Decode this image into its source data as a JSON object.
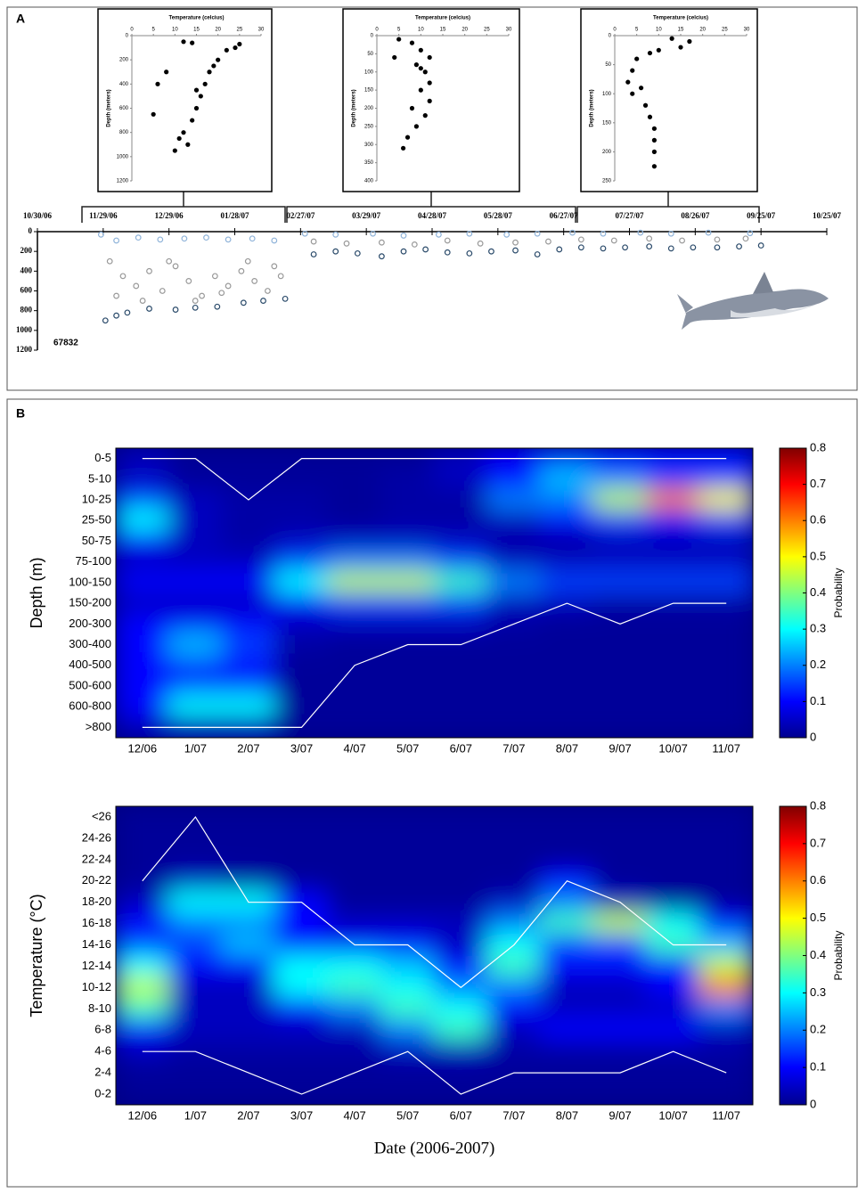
{
  "chart_data": [
    {
      "type": "timeseries",
      "label": "A",
      "annotation": "67832",
      "xlim": [
        "10/30/06",
        "10/25/07"
      ],
      "xticks": [
        "10/30/06",
        "11/29/06",
        "12/29/06",
        "01/28/07",
        "02/27/07",
        "03/29/07",
        "04/28/07",
        "05/28/07",
        "06/27/07",
        "07/27/07",
        "08/26/07",
        "09/25/07",
        "10/25/07"
      ],
      "ylim": [
        0,
        1200
      ],
      "yticks": [
        0,
        200,
        400,
        600,
        800,
        1000,
        1200
      ],
      "series": [
        {
          "color": "#999999",
          "x": [
            "12/02/06",
            "12/08/06",
            "12/14/06",
            "12/20/06",
            "12/26/06",
            "01/01/07",
            "01/07/07",
            "01/13/07",
            "01/19/07",
            "01/25/07",
            "01/31/07",
            "02/06/07",
            "02/12/07",
            "02/18/07",
            "12/05/06",
            "12/17/06",
            "12/29/06",
            "01/10/07",
            "01/22/07",
            "02/03/07",
            "02/15/07",
            "03/05/07",
            "03/20/07",
            "04/05/07",
            "04/20/07",
            "05/05/07",
            "05/20/07",
            "06/05/07",
            "06/20/07",
            "07/05/07",
            "07/20/07",
            "08/05/07",
            "08/20/07",
            "09/05/07",
            "09/18/07"
          ],
          "values": [
            300,
            450,
            550,
            400,
            600,
            350,
            500,
            650,
            450,
            550,
            400,
            500,
            600,
            450,
            650,
            700,
            300,
            700,
            620,
            300,
            350,
            100,
            120,
            110,
            130,
            90,
            120,
            110,
            100,
            80,
            90,
            70,
            90,
            80,
            70
          ]
        },
        {
          "color": "#8fb3d9",
          "x": [
            "11/28/06",
            "12/05/06",
            "12/15/06",
            "12/25/06",
            "01/05/07",
            "01/15/07",
            "01/25/07",
            "02/05/07",
            "02/15/07",
            "03/01/07",
            "03/15/07",
            "04/01/07",
            "04/15/07",
            "05/01/07",
            "05/15/07",
            "06/01/07",
            "06/15/07",
            "07/01/07",
            "07/15/07",
            "08/01/07",
            "08/15/07",
            "09/01/07",
            "09/20/07"
          ],
          "values": [
            30,
            90,
            60,
            80,
            70,
            60,
            80,
            70,
            90,
            20,
            30,
            20,
            40,
            30,
            20,
            30,
            20,
            10,
            20,
            10,
            20,
            10,
            15
          ]
        },
        {
          "color": "#2a4a6a",
          "x": [
            "11/30/06",
            "12/05/06",
            "12/10/06",
            "12/20/06",
            "01/01/07",
            "01/10/07",
            "01/20/07",
            "02/01/07",
            "02/10/07",
            "02/20/07",
            "03/05/07",
            "03/15/07",
            "03/25/07",
            "04/05/07",
            "04/15/07",
            "04/25/07",
            "05/05/07",
            "05/15/07",
            "05/25/07",
            "06/05/07",
            "06/15/07",
            "06/25/07",
            "07/05/07",
            "07/15/07",
            "07/25/07",
            "08/05/07",
            "08/15/07",
            "08/25/07",
            "09/05/07",
            "09/15/07",
            "09/25/07"
          ],
          "values": [
            900,
            850,
            820,
            780,
            790,
            770,
            760,
            720,
            700,
            680,
            230,
            200,
            220,
            250,
            200,
            180,
            210,
            220,
            200,
            190,
            230,
            180,
            160,
            170,
            160,
            150,
            170,
            160,
            160,
            150,
            140
          ]
        }
      ]
    },
    {
      "type": "scatter",
      "x_label": "Temperature (celcius)",
      "y_label": "Depth (meters)",
      "color": "#000000",
      "xlim": [
        0,
        30
      ],
      "xticks": [
        0,
        5,
        10,
        15,
        20,
        25,
        30
      ],
      "ylim": [
        0,
        1200
      ],
      "yticks": [
        0,
        200,
        400,
        600,
        800,
        1000,
        1200
      ],
      "x": [
        12,
        14,
        22,
        25,
        20,
        18,
        17,
        16,
        15,
        14,
        12,
        13,
        10,
        8,
        6,
        5,
        19,
        15,
        11,
        24
      ],
      "values": [
        50,
        60,
        120,
        70,
        200,
        300,
        400,
        500,
        600,
        700,
        800,
        900,
        950,
        300,
        400,
        650,
        250,
        450,
        850,
        100
      ]
    },
    {
      "type": "scatter",
      "x_label": "Temperature (celcius)",
      "y_label": "Depth (meters)",
      "color": "#000000",
      "xlim": [
        0,
        30
      ],
      "xticks": [
        0,
        5,
        10,
        15,
        20,
        25,
        30
      ],
      "ylim": [
        0,
        400
      ],
      "yticks": [
        0,
        50,
        100,
        150,
        200,
        250,
        300,
        350,
        400
      ],
      "x": [
        5,
        8,
        10,
        12,
        9,
        11,
        10,
        12,
        8,
        11,
        9,
        7,
        6,
        12,
        4,
        10
      ],
      "values": [
        10,
        20,
        40,
        60,
        80,
        100,
        150,
        180,
        200,
        220,
        250,
        280,
        310,
        130,
        60,
        90
      ]
    },
    {
      "type": "scatter",
      "x_label": "Temperature (celcius)",
      "y_label": "Depth (meters)",
      "color": "#000000",
      "xlim": [
        0,
        30
      ],
      "xticks": [
        0,
        5,
        10,
        15,
        20,
        25,
        30
      ],
      "ylim": [
        0,
        250
      ],
      "yticks": [
        0,
        50,
        100,
        150,
        200,
        250
      ],
      "x": [
        13,
        17,
        15,
        8,
        5,
        4,
        3,
        4,
        7,
        8,
        9,
        9,
        9,
        9,
        6,
        10
      ],
      "values": [
        5,
        10,
        20,
        30,
        40,
        60,
        80,
        100,
        120,
        140,
        160,
        180,
        200,
        225,
        90,
        25
      ]
    },
    {
      "type": "heatmap",
      "label": "B",
      "y_label": "Depth (m)",
      "colorbar_label": "Probability",
      "categories": [
        "12/06",
        "1/07",
        "2/07",
        "3/07",
        "4/07",
        "5/07",
        "6/07",
        "7/07",
        "8/07",
        "9/07",
        "10/07",
        "11/07"
      ],
      "rows": [
        "0-5",
        "5-10",
        "10-25",
        "25-50",
        "50-75",
        "75-100",
        "100-150",
        "150-200",
        "200-300",
        "300-400",
        "400-500",
        "500-600",
        "600-800",
        ">800"
      ],
      "clim": [
        0,
        0.8
      ],
      "cticks": [
        0,
        0.1,
        0.2,
        0.3,
        0.4,
        0.5,
        0.6,
        0.7,
        0.8
      ],
      "matrix": [
        [
          0.05,
          0.02,
          0.02,
          0.02,
          0.02,
          0.02,
          0.05,
          0.1,
          0.15,
          0.1,
          0.1,
          0.1
        ],
        [
          0.05,
          0.02,
          0.02,
          0.02,
          0.02,
          0.03,
          0.05,
          0.1,
          0.25,
          0.2,
          0.15,
          0.15
        ],
        [
          0.15,
          0.05,
          0.03,
          0.03,
          0.02,
          0.03,
          0.03,
          0.2,
          0.2,
          0.45,
          0.6,
          0.5
        ],
        [
          0.3,
          0.05,
          0.03,
          0.03,
          0.02,
          0.03,
          0.03,
          0.05,
          0.1,
          0.15,
          0.1,
          0.15
        ],
        [
          0.1,
          0.05,
          0.03,
          0.05,
          0.05,
          0.05,
          0.05,
          0.03,
          0.03,
          0.05,
          0.05,
          0.05
        ],
        [
          0.05,
          0.05,
          0.05,
          0.15,
          0.2,
          0.2,
          0.15,
          0.05,
          0.05,
          0.05,
          0.05,
          0.05
        ],
        [
          0.1,
          0.1,
          0.1,
          0.3,
          0.45,
          0.45,
          0.35,
          0.2,
          0.15,
          0.15,
          0.15,
          0.15
        ],
        [
          0.05,
          0.05,
          0.05,
          0.1,
          0.15,
          0.15,
          0.15,
          0.05,
          0.05,
          0.03,
          0.03,
          0.03
        ],
        [
          0.1,
          0.1,
          0.1,
          0.05,
          0.05,
          0.05,
          0.05,
          0.03,
          0.02,
          0.02,
          0.02,
          0.02
        ],
        [
          0.1,
          0.25,
          0.15,
          0.03,
          0.02,
          0.02,
          0.02,
          0.02,
          0.02,
          0.02,
          0.02,
          0.02
        ],
        [
          0.1,
          0.15,
          0.1,
          0.02,
          0.02,
          0.02,
          0.02,
          0.02,
          0.02,
          0.02,
          0.02,
          0.02
        ],
        [
          0.1,
          0.15,
          0.15,
          0.02,
          0.02,
          0.02,
          0.02,
          0.02,
          0.02,
          0.02,
          0.02,
          0.02
        ],
        [
          0.1,
          0.3,
          0.3,
          0.02,
          0.02,
          0.02,
          0.02,
          0.02,
          0.02,
          0.02,
          0.02,
          0.02
        ],
        [
          0.05,
          0.05,
          0.05,
          0.02,
          0.02,
          0.02,
          0.02,
          0.02,
          0.02,
          0.02,
          0.02,
          0.02
        ]
      ],
      "lines": [
        {
          "color": "#ffffff",
          "values": [
            ">800",
            ">800",
            ">800",
            ">800",
            "400-500",
            "300-400",
            "300-400",
            "200-300",
            "150-200",
            "200-300",
            "150-200",
            "150-200"
          ]
        },
        {
          "color": "#ffffff",
          "values": [
            "0-5",
            "0-5",
            "10-25",
            "0-5",
            "0-5",
            "0-5",
            "0-5",
            "0-5",
            "0-5",
            "0-5",
            "0-5",
            "0-5"
          ]
        }
      ]
    },
    {
      "type": "heatmap",
      "y_label": "Temperature (°C)",
      "x_label": "Date (2006-2007)",
      "colorbar_label": "Probability",
      "categories": [
        "12/06",
        "1/07",
        "2/07",
        "3/07",
        "4/07",
        "5/07",
        "6/07",
        "7/07",
        "8/07",
        "9/07",
        "10/07",
        "11/07"
      ],
      "rows": [
        "<26",
        "24-26",
        "22-24",
        "20-22",
        "18-20",
        "16-18",
        "14-16",
        "12-14",
        "10-12",
        "8-10",
        "6-8",
        "4-6",
        "2-4",
        "0-2"
      ],
      "clim": [
        0,
        0.8
      ],
      "cticks": [
        0,
        0.1,
        0.2,
        0.3,
        0.4,
        0.5,
        0.6,
        0.7,
        0.8
      ],
      "matrix": [
        [
          0.02,
          0.02,
          0.02,
          0.02,
          0.02,
          0.02,
          0.02,
          0.02,
          0.02,
          0.02,
          0.02,
          0.02
        ],
        [
          0.02,
          0.02,
          0.02,
          0.02,
          0.02,
          0.02,
          0.02,
          0.02,
          0.02,
          0.02,
          0.02,
          0.02
        ],
        [
          0.02,
          0.02,
          0.02,
          0.02,
          0.02,
          0.02,
          0.02,
          0.02,
          0.02,
          0.02,
          0.02,
          0.02
        ],
        [
          0.02,
          0.05,
          0.03,
          0.02,
          0.02,
          0.02,
          0.02,
          0.02,
          0.1,
          0.02,
          0.02,
          0.02
        ],
        [
          0.05,
          0.3,
          0.3,
          0.1,
          0.02,
          0.02,
          0.02,
          0.05,
          0.2,
          0.05,
          0.02,
          0.02
        ],
        [
          0.1,
          0.2,
          0.2,
          0.1,
          0.05,
          0.05,
          0.05,
          0.2,
          0.35,
          0.45,
          0.3,
          0.1
        ],
        [
          0.15,
          0.15,
          0.25,
          0.1,
          0.1,
          0.1,
          0.05,
          0.3,
          0.15,
          0.15,
          0.35,
          0.25
        ],
        [
          0.3,
          0.1,
          0.1,
          0.3,
          0.3,
          0.25,
          0.1,
          0.35,
          0.1,
          0.1,
          0.1,
          0.45
        ],
        [
          0.45,
          0.05,
          0.05,
          0.3,
          0.35,
          0.3,
          0.2,
          0.2,
          0.05,
          0.05,
          0.1,
          0.6
        ],
        [
          0.35,
          0.05,
          0.05,
          0.1,
          0.2,
          0.35,
          0.3,
          0.1,
          0.05,
          0.05,
          0.05,
          0.2
        ],
        [
          0.1,
          0.05,
          0.05,
          0.05,
          0.05,
          0.2,
          0.35,
          0.05,
          0.1,
          0.1,
          0.1,
          0.05
        ],
        [
          0.05,
          0.03,
          0.03,
          0.03,
          0.03,
          0.05,
          0.05,
          0.03,
          0.03,
          0.03,
          0.03,
          0.03
        ],
        [
          0.02,
          0.02,
          0.02,
          0.02,
          0.02,
          0.02,
          0.02,
          0.02,
          0.02,
          0.02,
          0.02,
          0.02
        ],
        [
          0.02,
          0.02,
          0.02,
          0.02,
          0.02,
          0.02,
          0.02,
          0.02,
          0.02,
          0.02,
          0.02,
          0.02
        ]
      ],
      "lines": [
        {
          "color": "#ffffff",
          "values": [
            "20-22",
            "<26",
            "18-20",
            "18-20",
            "14-16",
            "14-16",
            "10-12",
            "14-16",
            "20-22",
            "18-20",
            "14-16",
            "14-16"
          ]
        },
        {
          "color": "#ffffff",
          "values": [
            "4-6",
            "4-6",
            "2-4",
            "0-2",
            "2-4",
            "4-6",
            "0-2",
            "2-4",
            "2-4",
            "2-4",
            "4-6",
            "2-4"
          ]
        }
      ]
    }
  ]
}
